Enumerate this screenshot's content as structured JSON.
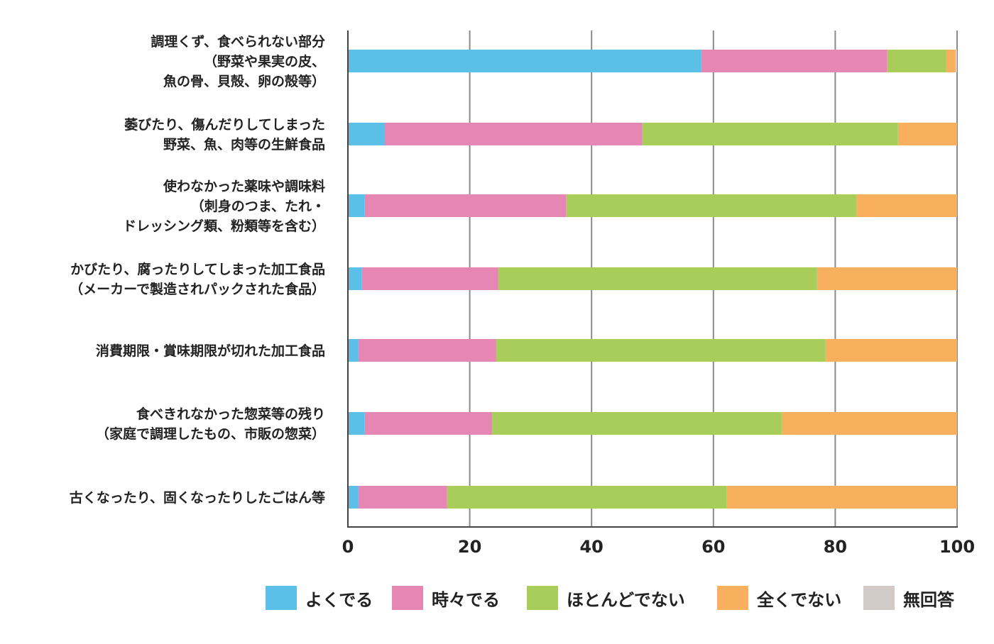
{
  "chart_data": {
    "type": "bar",
    "orientation": "horizontal",
    "stacked": true,
    "categories": [
      [
        "調理くず、食べられない部分",
        "（野菜や果実の皮、",
        "魚の骨、貝殻、卵の殻等）"
      ],
      [
        "萎びたり、傷んだりしてしまった",
        "野菜、魚、肉等の生鮮食品"
      ],
      [
        "使わなかった薬味や調味料",
        "（刺身のつま、たれ・",
        "ドレッシング類、粉類等を含む）"
      ],
      [
        "かびたり、腐ったりしてしまった加工食品",
        "（メーカーで製造されパックされた食品）"
      ],
      [
        "消費期限・賞味期限が切れた加工食品"
      ],
      [
        "食べきれなかった惣菜等の残り",
        "（家庭で調理したもの、市販の惣菜）"
      ],
      [
        "古くなったり、固くなったりしたごはん等"
      ]
    ],
    "series": [
      {
        "name": "よくでる",
        "color": "#5bbfe7",
        "values": [
          58,
          6,
          2.7,
          2.3,
          1.7,
          2.7,
          1.7
        ]
      },
      {
        "name": "時々でる",
        "color": "#e687b3",
        "values": [
          30.5,
          42.3,
          33.1,
          22.4,
          22.6,
          20.9,
          14.5
        ]
      },
      {
        "name": "ほとんどでない",
        "color": "#a8cd5a",
        "values": [
          9.7,
          42,
          47.7,
          52.3,
          54.1,
          47.6,
          46
        ]
      },
      {
        "name": "全くでない",
        "color": "#f8b05e",
        "values": [
          1.5,
          9.7,
          16.5,
          23,
          21.6,
          28.8,
          37.8
        ]
      },
      {
        "name": "無回答",
        "color": "#d2cac6",
        "values": [
          0.3,
          0,
          0,
          0,
          0,
          0,
          0
        ]
      }
    ],
    "xlim": [
      0,
      100
    ],
    "xticks": [
      "0",
      "20",
      "40",
      "60",
      "80",
      "100"
    ],
    "xlabel": "",
    "ylabel": "",
    "grid": true,
    "legend_position": "bottom"
  }
}
